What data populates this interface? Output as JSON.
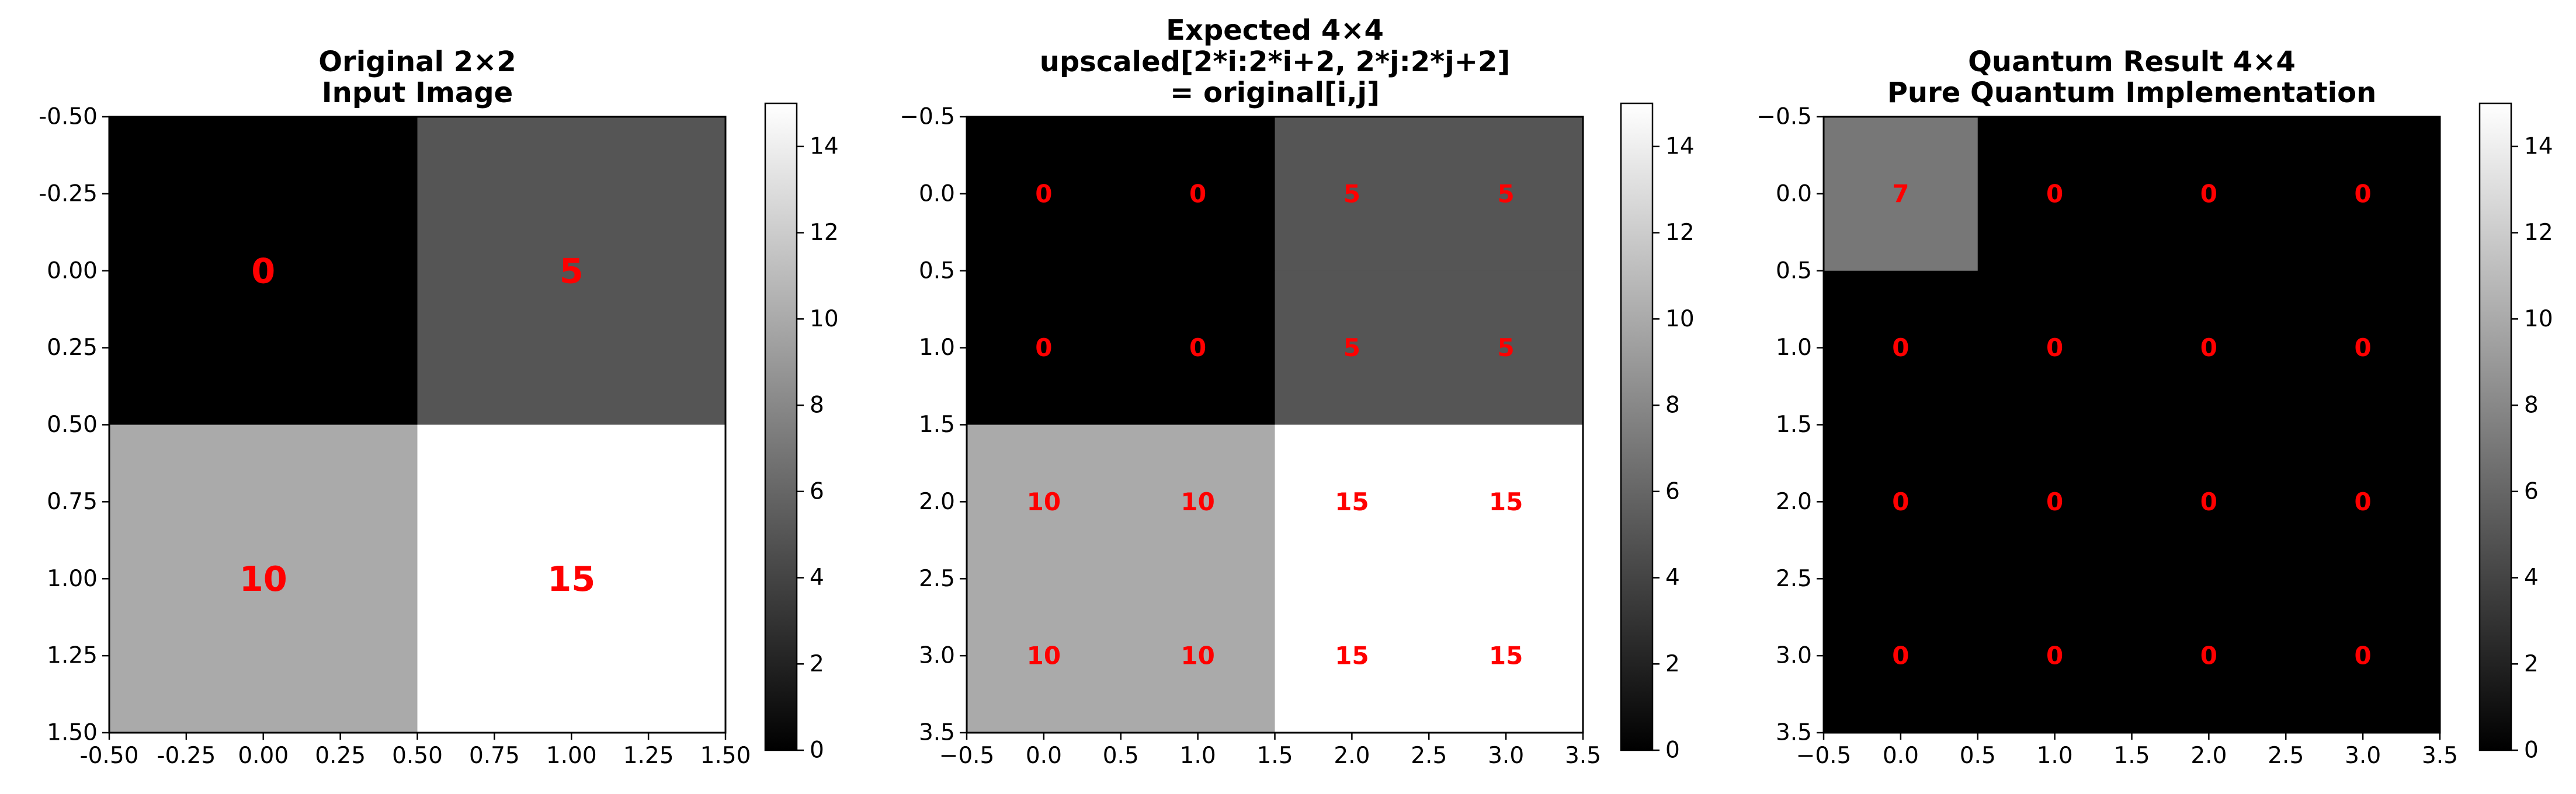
{
  "chart_data": [
    {
      "type": "heatmap",
      "colormap": "gray",
      "title": [
        "Original 2×2",
        "Input Image"
      ],
      "rows": 2,
      "cols": 2,
      "values": [
        [
          0,
          5
        ],
        [
          10,
          15
        ]
      ],
      "cell_labels": [
        [
          "0",
          "5"
        ],
        [
          "10",
          "15"
        ]
      ],
      "xlim": [
        -0.5,
        1.5
      ],
      "ylim": [
        1.5,
        -0.5
      ],
      "xticks": [
        "-0.50",
        "-0.25",
        "0.00",
        "0.25",
        "0.50",
        "0.75",
        "1.00",
        "1.25",
        "1.50"
      ],
      "yticks": [
        "-0.50",
        "-0.25",
        "0.00",
        "0.25",
        "0.50",
        "0.75",
        "1.00",
        "1.25",
        "1.50"
      ],
      "colorbar": {
        "range": [
          0,
          15
        ],
        "ticks": [
          "0",
          "2",
          "4",
          "6",
          "8",
          "10",
          "12",
          "14"
        ]
      }
    },
    {
      "type": "heatmap",
      "colormap": "gray",
      "title": [
        "Expected 4×4",
        "upscaled[2*i:2*i+2, 2*j:2*j+2]",
        "= original[i,j]"
      ],
      "rows": 4,
      "cols": 4,
      "values": [
        [
          0,
          0,
          5,
          5
        ],
        [
          0,
          0,
          5,
          5
        ],
        [
          10,
          10,
          15,
          15
        ],
        [
          10,
          10,
          15,
          15
        ]
      ],
      "cell_labels": [
        [
          "0",
          "0",
          "5",
          "5"
        ],
        [
          "0",
          "0",
          "5",
          "5"
        ],
        [
          "10",
          "10",
          "15",
          "15"
        ],
        [
          "10",
          "10",
          "15",
          "15"
        ]
      ],
      "xlim": [
        -0.5,
        3.5
      ],
      "ylim": [
        3.5,
        -0.5
      ],
      "xticks": [
        "−0.5",
        "0.0",
        "0.5",
        "1.0",
        "1.5",
        "2.0",
        "2.5",
        "3.0",
        "3.5"
      ],
      "yticks": [
        "−0.5",
        "0.0",
        "0.5",
        "1.0",
        "1.5",
        "2.0",
        "2.5",
        "3.0",
        "3.5"
      ],
      "colorbar": {
        "range": [
          0,
          15
        ],
        "ticks": [
          "0",
          "2",
          "4",
          "6",
          "8",
          "10",
          "12",
          "14"
        ]
      }
    },
    {
      "type": "heatmap",
      "colormap": "gray",
      "title": [
        "Quantum Result 4×4",
        "Pure Quantum Implementation"
      ],
      "rows": 4,
      "cols": 4,
      "values": [
        [
          7,
          0,
          0,
          0
        ],
        [
          0,
          0,
          0,
          0
        ],
        [
          0,
          0,
          0,
          0
        ],
        [
          0,
          0,
          0,
          0
        ]
      ],
      "cell_labels": [
        [
          "7",
          "0",
          "0",
          "0"
        ],
        [
          "0",
          "0",
          "0",
          "0"
        ],
        [
          "0",
          "0",
          "0",
          "0"
        ],
        [
          "0",
          "0",
          "0",
          "0"
        ]
      ],
      "xlim": [
        -0.5,
        3.5
      ],
      "ylim": [
        3.5,
        -0.5
      ],
      "xticks": [
        "−0.5",
        "0.0",
        "0.5",
        "1.0",
        "1.5",
        "2.0",
        "2.5",
        "3.0",
        "3.5"
      ],
      "yticks": [
        "−0.5",
        "0.0",
        "0.5",
        "1.0",
        "1.5",
        "2.0",
        "2.5",
        "3.0",
        "3.5"
      ],
      "colorbar": {
        "range": [
          0,
          15
        ],
        "ticks": [
          "0",
          "2",
          "4",
          "6",
          "8",
          "10",
          "12",
          "14"
        ]
      }
    }
  ]
}
